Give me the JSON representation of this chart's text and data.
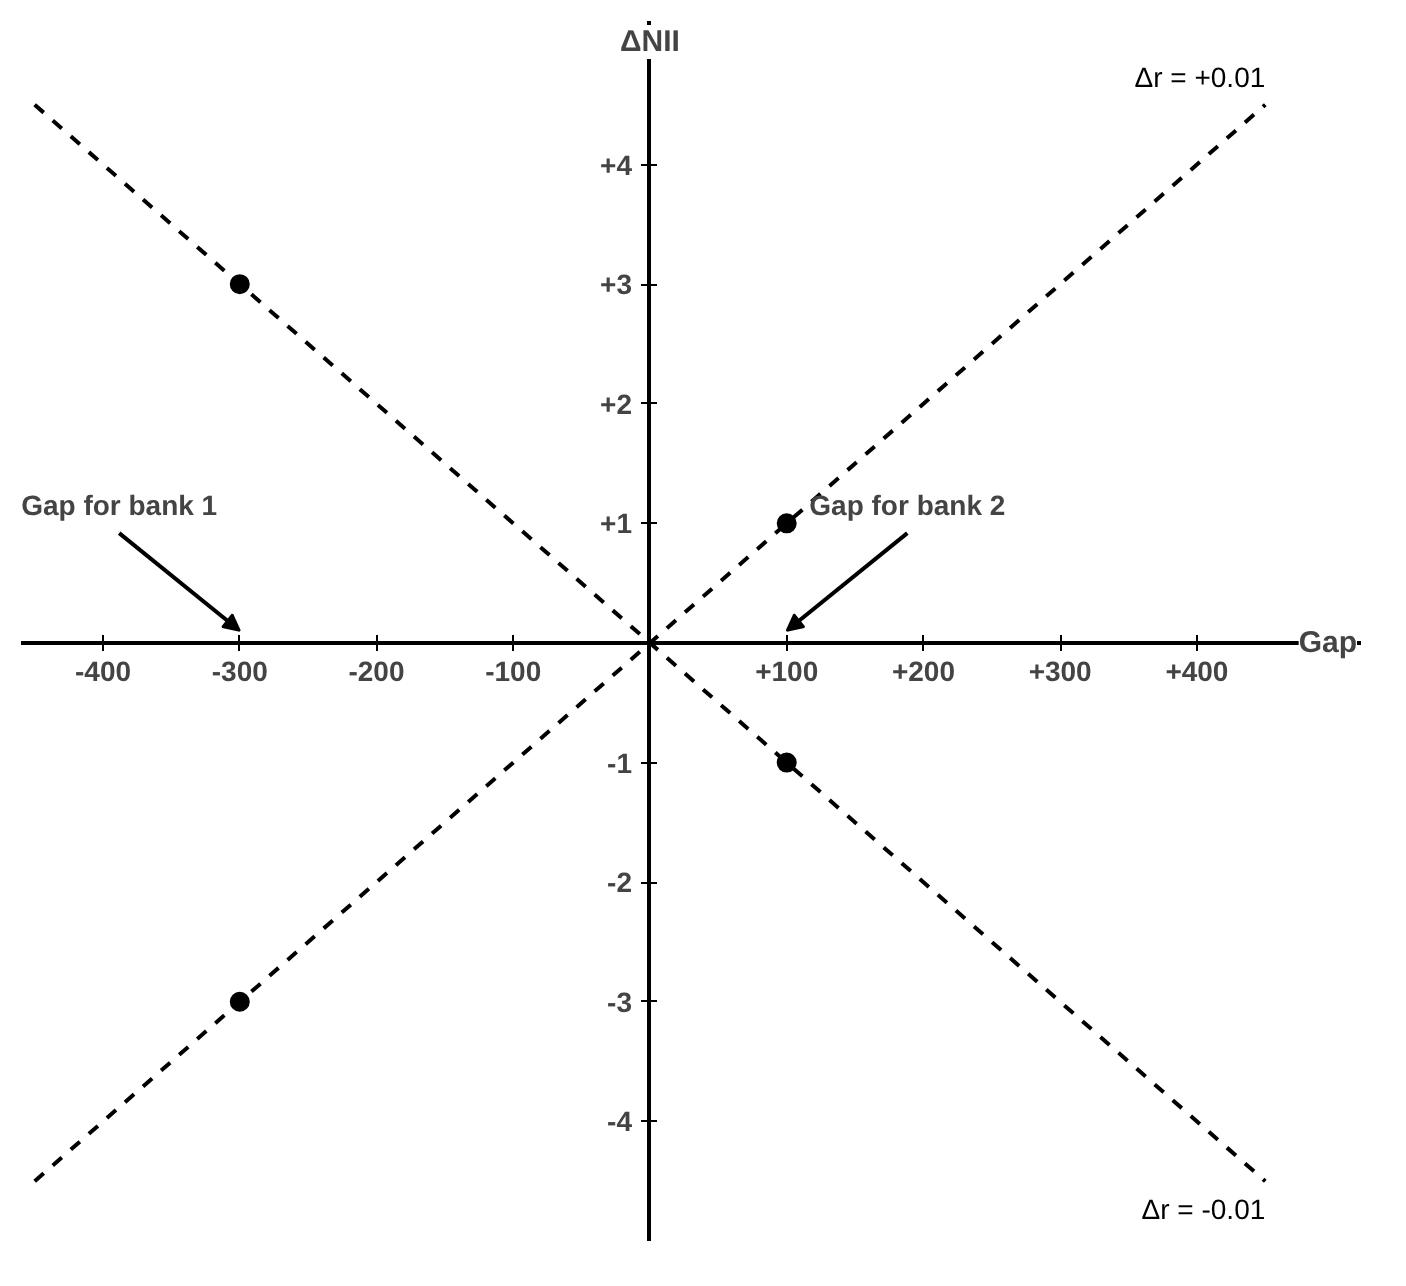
{
  "chart_data": {
    "type": "line",
    "xlabel": "Gap",
    "ylabel": "ΔNII",
    "xlim": [
      -460,
      520
    ],
    "ylim": [
      -5.0,
      5.2
    ],
    "xticks": [
      {
        "value": -400,
        "label": "-400"
      },
      {
        "value": -300,
        "label": "-300"
      },
      {
        "value": -200,
        "label": "-200"
      },
      {
        "value": -100,
        "label": "-100"
      },
      {
        "value": 100,
        "label": "+100"
      },
      {
        "value": 200,
        "label": "+200"
      },
      {
        "value": 300,
        "label": "+300"
      },
      {
        "value": 400,
        "label": "+400"
      }
    ],
    "yticks": [
      {
        "value": -4,
        "label": "-4"
      },
      {
        "value": -3,
        "label": "-3"
      },
      {
        "value": -2,
        "label": "-2"
      },
      {
        "value": -1,
        "label": "-1"
      },
      {
        "value": 1,
        "label": "+1"
      },
      {
        "value": 2,
        "label": "+2"
      },
      {
        "value": 3,
        "label": "+3"
      },
      {
        "value": 4,
        "label": "+4"
      }
    ],
    "grid": false,
    "line_style": "dashed",
    "series": [
      {
        "name": "Δr = +0.01",
        "color": "#000000",
        "x": [
          -450,
          450
        ],
        "values": [
          -4.5,
          4.5
        ]
      },
      {
        "name": "Δr = -0.01",
        "color": "#000000",
        "x": [
          -450,
          450
        ],
        "values": [
          4.5,
          -4.5
        ]
      },
      {
        "type": "scatter",
        "color": "#000000",
        "marker": "circle",
        "x": [
          -300,
          100,
          100,
          -300
        ],
        "values": [
          3,
          1,
          -1,
          -3
        ]
      }
    ],
    "annotations": [
      "Gap for bank 1",
      "Gap for bank 2"
    ]
  }
}
